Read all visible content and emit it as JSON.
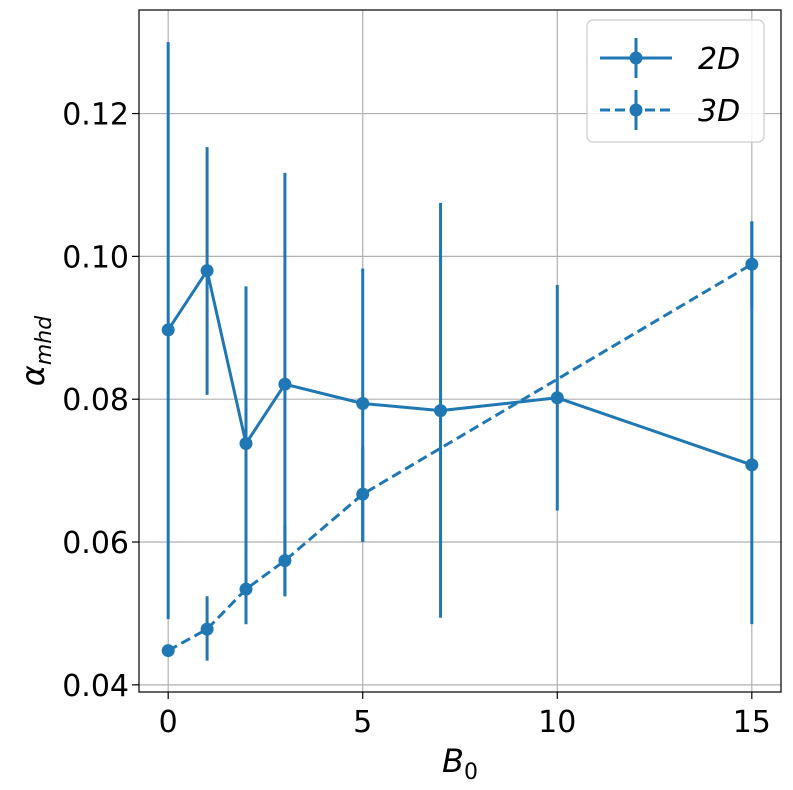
{
  "chart_data": {
    "type": "line",
    "x_label": "B",
    "x_label_sub": "0",
    "y_label": "α",
    "y_label_sub": "mhd",
    "xlim": [
      -0.75,
      15.75
    ],
    "ylim": [
      0.039,
      0.1345
    ],
    "x_ticks": [
      0,
      5,
      10,
      15
    ],
    "x_tick_labels": [
      "0",
      "5",
      "10",
      "15"
    ],
    "y_ticks": [
      0.04,
      0.06,
      0.08,
      0.1,
      0.12
    ],
    "y_tick_labels": [
      "0.04",
      "0.06",
      "0.08",
      "0.10",
      "0.12"
    ],
    "grid": true,
    "legend_position": "top-right",
    "series": [
      {
        "name": "2D",
        "line_style": "solid",
        "color": "#1f77b4",
        "points": [
          {
            "x": 0,
            "y": 0.0897,
            "err_low": 0.0492,
            "err_high": 0.13
          },
          {
            "x": 1,
            "y": 0.098,
            "err_low": 0.0806,
            "err_high": 0.1153
          },
          {
            "x": 2,
            "y": 0.0738,
            "err_low": 0.0485,
            "err_high": 0.0958
          },
          {
            "x": 3,
            "y": 0.0821,
            "err_low": 0.0524,
            "err_high": 0.1117
          },
          {
            "x": 5,
            "y": 0.0794,
            "err_low": 0.06,
            "err_high": 0.0983
          },
          {
            "x": 7,
            "y": 0.0784,
            "err_low": 0.0494,
            "err_high": 0.1075
          },
          {
            "x": 10,
            "y": 0.0802,
            "err_low": 0.0644,
            "err_high": 0.096
          },
          {
            "x": 15,
            "y": 0.0708,
            "err_low": 0.0485,
            "err_high": 0.1049
          }
        ]
      },
      {
        "name": "3D",
        "line_style": "dashed",
        "color": "#1f77b4",
        "points": [
          {
            "x": 0,
            "y": 0.0448,
            "err_low": 0.044,
            "err_high": 0.0456
          },
          {
            "x": 1,
            "y": 0.0478,
            "err_low": 0.0434,
            "err_high": 0.0524
          },
          {
            "x": 2,
            "y": 0.0534,
            "err_low": 0.0485,
            "err_high": 0.0583
          },
          {
            "x": 3,
            "y": 0.0574,
            "err_low": 0.0524,
            "err_high": 0.0624
          },
          {
            "x": 5,
            "y": 0.0667,
            "err_low": 0.06,
            "err_high": 0.0734
          },
          {
            "x": 15,
            "y": 0.0989,
            "err_low": 0.0929,
            "err_high": 0.1049
          }
        ]
      }
    ]
  }
}
